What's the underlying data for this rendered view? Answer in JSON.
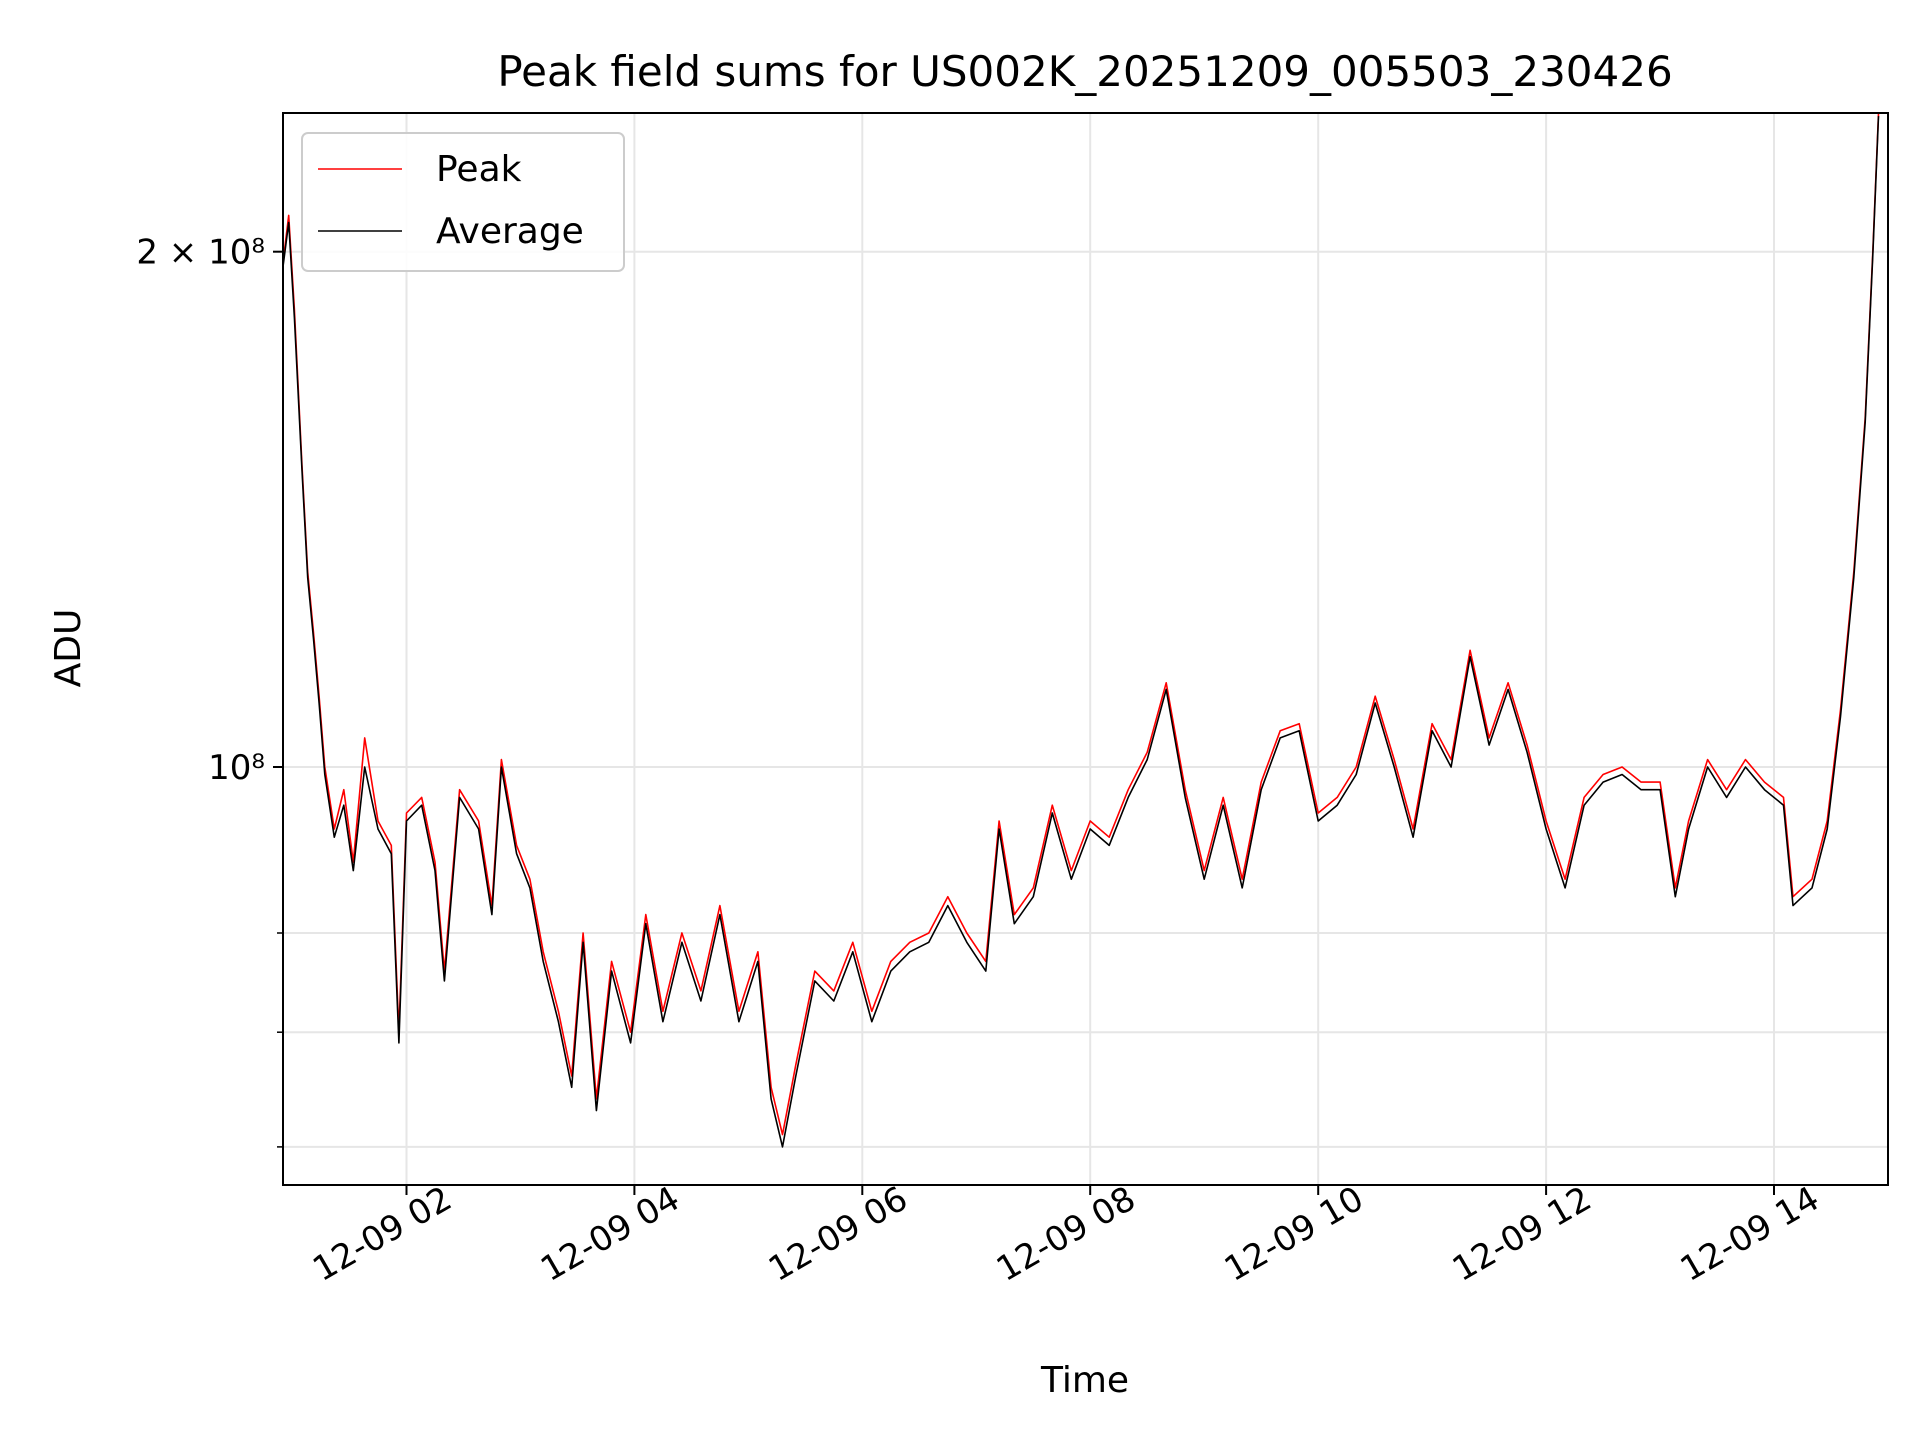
{
  "chart_data": {
    "type": "line",
    "title": "Peak field sums for US002K_20251209_005503_230426",
    "xlabel": "Time",
    "ylabel": "ADU",
    "x_range": [
      "2025-12-09T00:55",
      "2025-12-09T15:00"
    ],
    "y_scale": "log",
    "ylim": [
      57000000,
      241000000
    ],
    "grid": true,
    "legend": {
      "placement": "top-left",
      "entries": [
        "Peak",
        "Average"
      ]
    },
    "x_ticks": [
      "12-09 02",
      "12-09 04",
      "12-09 06",
      "12-09 08",
      "12-09 10",
      "12-09 12",
      "12-09 14"
    ],
    "y_tick_labels": [
      "2 × 10⁸",
      "10⁸"
    ],
    "series": [
      {
        "name": "Peak",
        "color": "#ff0000",
        "points": [
          [
            "2025-12-09T00:55",
            197000000
          ],
          [
            "2025-12-09T00:58",
            210000000
          ],
          [
            "2025-12-09T01:01",
            185000000
          ],
          [
            "2025-12-09T01:05",
            150000000
          ],
          [
            "2025-12-09T01:08",
            130000000
          ],
          [
            "2025-12-09T01:11",
            120000000
          ],
          [
            "2025-12-09T01:14",
            110000000
          ],
          [
            "2025-12-09T01:17",
            100000000
          ],
          [
            "2025-12-09T01:22",
            92000000
          ],
          [
            "2025-12-09T01:27",
            97000000
          ],
          [
            "2025-12-09T01:32",
            88000000
          ],
          [
            "2025-12-09T01:38",
            104000000
          ],
          [
            "2025-12-09T01:45",
            93000000
          ],
          [
            "2025-12-09T01:52",
            90000000
          ],
          [
            "2025-12-09T01:56",
            70000000
          ],
          [
            "2025-12-09T02:00",
            94000000
          ],
          [
            "2025-12-09T02:08",
            96000000
          ],
          [
            "2025-12-09T02:15",
            88000000
          ],
          [
            "2025-12-09T02:20",
            76000000
          ],
          [
            "2025-12-09T02:28",
            97000000
          ],
          [
            "2025-12-09T02:38",
            93000000
          ],
          [
            "2025-12-09T02:45",
            83000000
          ],
          [
            "2025-12-09T02:50",
            101000000
          ],
          [
            "2025-12-09T02:58",
            90000000
          ],
          [
            "2025-12-09T03:05",
            86000000
          ],
          [
            "2025-12-09T03:12",
            78000000
          ],
          [
            "2025-12-09T03:20",
            72000000
          ],
          [
            "2025-12-09T03:27",
            66000000
          ],
          [
            "2025-12-09T03:33",
            80000000
          ],
          [
            "2025-12-09T03:40",
            64000000
          ],
          [
            "2025-12-09T03:48",
            77000000
          ],
          [
            "2025-12-09T03:58",
            70000000
          ],
          [
            "2025-12-09T04:06",
            82000000
          ],
          [
            "2025-12-09T04:15",
            72000000
          ],
          [
            "2025-12-09T04:25",
            80000000
          ],
          [
            "2025-12-09T04:35",
            74000000
          ],
          [
            "2025-12-09T04:45",
            83000000
          ],
          [
            "2025-12-09T04:55",
            72000000
          ],
          [
            "2025-12-09T05:05",
            78000000
          ],
          [
            "2025-12-09T05:12",
            65000000
          ],
          [
            "2025-12-09T05:18",
            61000000
          ],
          [
            "2025-12-09T05:25",
            67000000
          ],
          [
            "2025-12-09T05:35",
            76000000
          ],
          [
            "2025-12-09T05:45",
            74000000
          ],
          [
            "2025-12-09T05:55",
            79000000
          ],
          [
            "2025-12-09T06:05",
            72000000
          ],
          [
            "2025-12-09T06:15",
            77000000
          ],
          [
            "2025-12-09T06:25",
            79000000
          ],
          [
            "2025-12-09T06:35",
            80000000
          ],
          [
            "2025-12-09T06:45",
            84000000
          ],
          [
            "2025-12-09T06:55",
            80000000
          ],
          [
            "2025-12-09T07:05",
            77000000
          ],
          [
            "2025-12-09T07:12",
            93000000
          ],
          [
            "2025-12-09T07:20",
            82000000
          ],
          [
            "2025-12-09T07:30",
            85000000
          ],
          [
            "2025-12-09T07:40",
            95000000
          ],
          [
            "2025-12-09T07:50",
            87000000
          ],
          [
            "2025-12-09T08:00",
            93000000
          ],
          [
            "2025-12-09T08:10",
            91000000
          ],
          [
            "2025-12-09T08:20",
            97000000
          ],
          [
            "2025-12-09T08:30",
            102000000
          ],
          [
            "2025-12-09T08:40",
            112000000
          ],
          [
            "2025-12-09T08:50",
            97000000
          ],
          [
            "2025-12-09T09:00",
            87000000
          ],
          [
            "2025-12-09T09:10",
            96000000
          ],
          [
            "2025-12-09T09:20",
            86000000
          ],
          [
            "2025-12-09T09:30",
            98000000
          ],
          [
            "2025-12-09T09:40",
            105000000
          ],
          [
            "2025-12-09T09:50",
            106000000
          ],
          [
            "2025-12-09T10:00",
            94000000
          ],
          [
            "2025-12-09T10:10",
            96000000
          ],
          [
            "2025-12-09T10:20",
            100000000
          ],
          [
            "2025-12-09T10:30",
            110000000
          ],
          [
            "2025-12-09T10:40",
            101000000
          ],
          [
            "2025-12-09T10:50",
            92000000
          ],
          [
            "2025-12-09T11:00",
            106000000
          ],
          [
            "2025-12-09T11:10",
            101000000
          ],
          [
            "2025-12-09T11:20",
            117000000
          ],
          [
            "2025-12-09T11:30",
            104000000
          ],
          [
            "2025-12-09T11:40",
            112000000
          ],
          [
            "2025-12-09T11:50",
            103000000
          ],
          [
            "2025-12-09T12:00",
            93000000
          ],
          [
            "2025-12-09T12:10",
            86000000
          ],
          [
            "2025-12-09T12:20",
            96000000
          ],
          [
            "2025-12-09T12:30",
            99000000
          ],
          [
            "2025-12-09T12:40",
            100000000
          ],
          [
            "2025-12-09T12:50",
            98000000
          ],
          [
            "2025-12-09T13:00",
            98000000
          ],
          [
            "2025-12-09T13:08",
            85000000
          ],
          [
            "2025-12-09T13:15",
            93000000
          ],
          [
            "2025-12-09T13:25",
            101000000
          ],
          [
            "2025-12-09T13:35",
            97000000
          ],
          [
            "2025-12-09T13:45",
            101000000
          ],
          [
            "2025-12-09T13:55",
            98000000
          ],
          [
            "2025-12-09T14:05",
            96000000
          ],
          [
            "2025-12-09T14:10",
            84000000
          ],
          [
            "2025-12-09T14:20",
            86000000
          ],
          [
            "2025-12-09T14:28",
            93000000
          ],
          [
            "2025-12-09T14:35",
            108000000
          ],
          [
            "2025-12-09T14:42",
            130000000
          ],
          [
            "2025-12-09T14:48",
            160000000
          ],
          [
            "2025-12-09T14:52",
            200000000
          ],
          [
            "2025-12-09T14:55",
            241000000
          ]
        ]
      },
      {
        "name": "Average",
        "color": "#000000",
        "points": [
          [
            "2025-12-09T00:55",
            196000000
          ],
          [
            "2025-12-09T00:58",
            208000000
          ],
          [
            "2025-12-09T01:01",
            183000000
          ],
          [
            "2025-12-09T01:05",
            149000000
          ],
          [
            "2025-12-09T01:08",
            129000000
          ],
          [
            "2025-12-09T01:11",
            119000000
          ],
          [
            "2025-12-09T01:14",
            109000000
          ],
          [
            "2025-12-09T01:17",
            99000000
          ],
          [
            "2025-12-09T01:22",
            91000000
          ],
          [
            "2025-12-09T01:27",
            95000000
          ],
          [
            "2025-12-09T01:32",
            87000000
          ],
          [
            "2025-12-09T01:38",
            100000000
          ],
          [
            "2025-12-09T01:45",
            92000000
          ],
          [
            "2025-12-09T01:52",
            89000000
          ],
          [
            "2025-12-09T01:56",
            69000000
          ],
          [
            "2025-12-09T02:00",
            93000000
          ],
          [
            "2025-12-09T02:08",
            95000000
          ],
          [
            "2025-12-09T02:15",
            87000000
          ],
          [
            "2025-12-09T02:20",
            75000000
          ],
          [
            "2025-12-09T02:28",
            96000000
          ],
          [
            "2025-12-09T02:38",
            92000000
          ],
          [
            "2025-12-09T02:45",
            82000000
          ],
          [
            "2025-12-09T02:50",
            100000000
          ],
          [
            "2025-12-09T02:58",
            89000000
          ],
          [
            "2025-12-09T03:05",
            85000000
          ],
          [
            "2025-12-09T03:12",
            77000000
          ],
          [
            "2025-12-09T03:20",
            71000000
          ],
          [
            "2025-12-09T03:27",
            65000000
          ],
          [
            "2025-12-09T03:33",
            79000000
          ],
          [
            "2025-12-09T03:40",
            63000000
          ],
          [
            "2025-12-09T03:48",
            76000000
          ],
          [
            "2025-12-09T03:58",
            69000000
          ],
          [
            "2025-12-09T04:06",
            81000000
          ],
          [
            "2025-12-09T04:15",
            71000000
          ],
          [
            "2025-12-09T04:25",
            79000000
          ],
          [
            "2025-12-09T04:35",
            73000000
          ],
          [
            "2025-12-09T04:45",
            82000000
          ],
          [
            "2025-12-09T04:55",
            71000000
          ],
          [
            "2025-12-09T05:05",
            77000000
          ],
          [
            "2025-12-09T05:12",
            64000000
          ],
          [
            "2025-12-09T05:18",
            60000000
          ],
          [
            "2025-12-09T05:25",
            66000000
          ],
          [
            "2025-12-09T05:35",
            75000000
          ],
          [
            "2025-12-09T05:45",
            73000000
          ],
          [
            "2025-12-09T05:55",
            78000000
          ],
          [
            "2025-12-09T06:05",
            71000000
          ],
          [
            "2025-12-09T06:15",
            76000000
          ],
          [
            "2025-12-09T06:25",
            78000000
          ],
          [
            "2025-12-09T06:35",
            79000000
          ],
          [
            "2025-12-09T06:45",
            83000000
          ],
          [
            "2025-12-09T06:55",
            79000000
          ],
          [
            "2025-12-09T07:05",
            76000000
          ],
          [
            "2025-12-09T07:12",
            92000000
          ],
          [
            "2025-12-09T07:20",
            81000000
          ],
          [
            "2025-12-09T07:30",
            84000000
          ],
          [
            "2025-12-09T07:40",
            94000000
          ],
          [
            "2025-12-09T07:50",
            86000000
          ],
          [
            "2025-12-09T08:00",
            92000000
          ],
          [
            "2025-12-09T08:10",
            90000000
          ],
          [
            "2025-12-09T08:20",
            96000000
          ],
          [
            "2025-12-09T08:30",
            101000000
          ],
          [
            "2025-12-09T08:40",
            111000000
          ],
          [
            "2025-12-09T08:50",
            96000000
          ],
          [
            "2025-12-09T09:00",
            86000000
          ],
          [
            "2025-12-09T09:10",
            95000000
          ],
          [
            "2025-12-09T09:20",
            85000000
          ],
          [
            "2025-12-09T09:30",
            97000000
          ],
          [
            "2025-12-09T09:40",
            104000000
          ],
          [
            "2025-12-09T09:50",
            105000000
          ],
          [
            "2025-12-09T10:00",
            93000000
          ],
          [
            "2025-12-09T10:10",
            95000000
          ],
          [
            "2025-12-09T10:20",
            99000000
          ],
          [
            "2025-12-09T10:30",
            109000000
          ],
          [
            "2025-12-09T10:40",
            100000000
          ],
          [
            "2025-12-09T10:50",
            91000000
          ],
          [
            "2025-12-09T11:00",
            105000000
          ],
          [
            "2025-12-09T11:10",
            100000000
          ],
          [
            "2025-12-09T11:20",
            116000000
          ],
          [
            "2025-12-09T11:30",
            103000000
          ],
          [
            "2025-12-09T11:40",
            111000000
          ],
          [
            "2025-12-09T11:50",
            102000000
          ],
          [
            "2025-12-09T12:00",
            92000000
          ],
          [
            "2025-12-09T12:10",
            85000000
          ],
          [
            "2025-12-09T12:20",
            95000000
          ],
          [
            "2025-12-09T12:30",
            98000000
          ],
          [
            "2025-12-09T12:40",
            99000000
          ],
          [
            "2025-12-09T12:50",
            97000000
          ],
          [
            "2025-12-09T13:00",
            97000000
          ],
          [
            "2025-12-09T13:08",
            84000000
          ],
          [
            "2025-12-09T13:15",
            92000000
          ],
          [
            "2025-12-09T13:25",
            100000000
          ],
          [
            "2025-12-09T13:35",
            96000000
          ],
          [
            "2025-12-09T13:45",
            100000000
          ],
          [
            "2025-12-09T13:55",
            97000000
          ],
          [
            "2025-12-09T14:05",
            95000000
          ],
          [
            "2025-12-09T14:10",
            83000000
          ],
          [
            "2025-12-09T14:20",
            85000000
          ],
          [
            "2025-12-09T14:28",
            92000000
          ],
          [
            "2025-12-09T14:35",
            107000000
          ],
          [
            "2025-12-09T14:42",
            129000000
          ],
          [
            "2025-12-09T14:48",
            159000000
          ],
          [
            "2025-12-09T14:52",
            199000000
          ],
          [
            "2025-12-09T14:55",
            240000000
          ]
        ]
      }
    ]
  }
}
